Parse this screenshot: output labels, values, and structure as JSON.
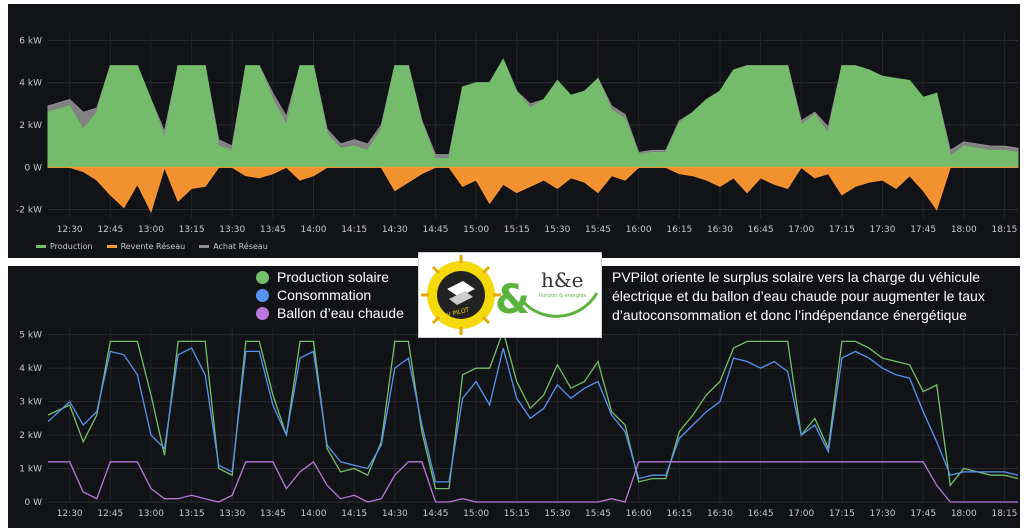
{
  "chart_data": [
    {
      "type": "area",
      "ylim": [
        -2.4,
        6.4
      ],
      "y_ticks": [
        "-2 kW",
        "0 W",
        "2 kW",
        "4 kW",
        "6 kW"
      ],
      "y_tick_values": [
        -2,
        0,
        2,
        4,
        6
      ],
      "x_ticks": [
        "12:30",
        "12:45",
        "13:00",
        "13:15",
        "13:30",
        "13:45",
        "14:00",
        "14:15",
        "14:30",
        "14:45",
        "15:00",
        "15:15",
        "15:30",
        "15:45",
        "16:00",
        "16:15",
        "16:30",
        "16:45",
        "17:00",
        "17:15",
        "17:30",
        "17:45",
        "18:00",
        "18:15"
      ],
      "x_range": [
        "12:22",
        "18:20"
      ],
      "grid": true,
      "legend": "bottom-left",
      "series": [
        {
          "name": "Production",
          "color": "#73bf69",
          "x": [
            "12:22",
            "12:30",
            "12:35",
            "12:40",
            "12:45",
            "12:50",
            "12:55",
            "13:00",
            "13:05",
            "13:10",
            "13:15",
            "13:20",
            "13:25",
            "13:30",
            "13:35",
            "13:40",
            "13:45",
            "13:50",
            "13:55",
            "14:00",
            "14:05",
            "14:10",
            "14:15",
            "14:20",
            "14:25",
            "14:30",
            "14:35",
            "14:40",
            "14:45",
            "14:50",
            "14:55",
            "15:00",
            "15:05",
            "15:10",
            "15:15",
            "15:20",
            "15:25",
            "15:30",
            "15:35",
            "15:40",
            "15:45",
            "15:50",
            "15:55",
            "16:00",
            "16:05",
            "16:10",
            "16:15",
            "16:20",
            "16:25",
            "16:30",
            "16:35",
            "16:40",
            "16:45",
            "16:50",
            "16:55",
            "17:00",
            "17:05",
            "17:10",
            "17:15",
            "17:20",
            "17:25",
            "17:30",
            "17:35",
            "17:40",
            "17:45",
            "17:50",
            "17:55",
            "18:00",
            "18:05",
            "18:10",
            "18:15",
            "18:20"
          ],
          "values": [
            2.6,
            2.9,
            1.8,
            2.6,
            4.8,
            4.8,
            4.8,
            3.2,
            1.4,
            4.8,
            4.8,
            4.8,
            1.0,
            0.8,
            4.8,
            4.8,
            3.2,
            2.0,
            4.8,
            4.8,
            1.6,
            0.9,
            1.0,
            0.8,
            1.8,
            4.8,
            4.8,
            2.1,
            0.4,
            0.4,
            3.8,
            4.0,
            4.0,
            5.1,
            3.6,
            2.8,
            3.2,
            4.1,
            3.4,
            3.6,
            4.2,
            2.7,
            2.3,
            0.6,
            0.7,
            0.7,
            2.1,
            2.6,
            3.2,
            3.6,
            4.6,
            4.8,
            4.8,
            4.8,
            4.8,
            2.0,
            2.5,
            1.6,
            4.8,
            4.8,
            4.6,
            4.3,
            4.2,
            4.1,
            3.3,
            3.5,
            0.5,
            1.0,
            0.9,
            0.8,
            0.8,
            0.7
          ]
        },
        {
          "name": "Revente Réseau",
          "color": "#ff9830",
          "x": [
            "12:22",
            "12:30",
            "12:35",
            "12:40",
            "12:45",
            "12:50",
            "12:55",
            "13:00",
            "13:05",
            "13:10",
            "13:15",
            "13:20",
            "13:25",
            "13:30",
            "13:35",
            "13:40",
            "13:45",
            "13:50",
            "13:55",
            "14:00",
            "14:05",
            "14:10",
            "14:15",
            "14:20",
            "14:25",
            "14:30",
            "14:35",
            "14:40",
            "14:45",
            "14:50",
            "14:55",
            "15:00",
            "15:05",
            "15:10",
            "15:15",
            "15:20",
            "15:25",
            "15:30",
            "15:35",
            "15:40",
            "15:45",
            "15:50",
            "15:55",
            "16:00",
            "16:05",
            "16:10",
            "16:15",
            "16:20",
            "16:25",
            "16:30",
            "16:35",
            "16:40",
            "16:45",
            "16:50",
            "16:55",
            "17:00",
            "17:05",
            "17:10",
            "17:15",
            "17:20",
            "17:25",
            "17:30",
            "17:35",
            "17:40",
            "17:45",
            "17:50",
            "17:55",
            "18:00",
            "18:05",
            "18:10",
            "18:15",
            "18:20"
          ],
          "values": [
            0,
            0,
            -0.2,
            -0.6,
            -1.3,
            -1.9,
            -0.8,
            -2.1,
            0,
            -1.6,
            -1.0,
            -0.9,
            0,
            0,
            -0.4,
            -0.5,
            -0.3,
            0,
            -0.6,
            -0.4,
            0,
            0,
            0,
            0,
            0,
            -1.1,
            -0.7,
            -0.3,
            0,
            0,
            -0.9,
            -0.6,
            -1.7,
            -0.8,
            -1.2,
            -0.9,
            -0.6,
            -1.0,
            -0.5,
            -0.7,
            -1.2,
            -0.4,
            -0.6,
            0,
            0,
            0,
            -0.3,
            -0.4,
            -0.6,
            -0.9,
            -0.5,
            -1.2,
            -0.5,
            -0.8,
            -1.0,
            0,
            -0.5,
            -0.3,
            -1.3,
            -0.9,
            -0.7,
            -0.6,
            -1.0,
            -0.4,
            -1.1,
            -2.0,
            0,
            0,
            0,
            0,
            0,
            0
          ]
        },
        {
          "name": "Achat Réseau",
          "color": "#8e8e8e",
          "x": [
            "12:22",
            "12:30",
            "12:35",
            "12:40",
            "12:45",
            "12:50",
            "12:55",
            "13:00",
            "13:05",
            "13:10",
            "13:15",
            "13:20",
            "13:25",
            "13:30",
            "13:35",
            "13:40",
            "13:45",
            "13:50",
            "13:55",
            "14:00",
            "14:05",
            "14:10",
            "14:15",
            "14:20",
            "14:25",
            "14:30",
            "14:35",
            "14:40",
            "14:45",
            "14:50",
            "14:55",
            "15:00",
            "15:05",
            "15:10",
            "15:15",
            "15:20",
            "15:25",
            "15:30",
            "15:35",
            "15:40",
            "15:45",
            "15:50",
            "15:55",
            "16:00",
            "16:05",
            "16:10",
            "16:15",
            "16:20",
            "16:25",
            "16:30",
            "16:35",
            "16:40",
            "16:45",
            "16:50",
            "16:55",
            "17:00",
            "17:05",
            "17:10",
            "17:15",
            "17:20",
            "17:25",
            "17:30",
            "17:35",
            "17:40",
            "17:45",
            "17:50",
            "17:55",
            "18:00",
            "18:05",
            "18:10",
            "18:15",
            "18:20"
          ],
          "values": [
            0.3,
            0.3,
            0.8,
            0.2,
            0,
            0,
            0,
            0,
            0.3,
            0,
            0,
            0,
            0.3,
            0.2,
            0,
            0,
            0.3,
            0.4,
            0,
            0,
            0.2,
            0.2,
            0.3,
            0.3,
            0.2,
            0,
            0,
            0.1,
            0.2,
            0.2,
            0,
            0,
            0,
            0,
            0,
            0.2,
            0,
            0,
            0,
            0,
            0,
            0.2,
            0.2,
            0.1,
            0.1,
            0.1,
            0.1,
            0,
            0,
            0,
            0,
            0,
            0,
            0,
            0,
            0.2,
            0.1,
            0.3,
            0,
            0,
            0,
            0,
            0,
            0,
            0,
            0,
            0.3,
            0.2,
            0.2,
            0.2,
            0.2,
            0.2
          ]
        }
      ]
    },
    {
      "type": "line",
      "ylim": [
        0,
        5.2
      ],
      "y_ticks": [
        "0 W",
        "1 kW",
        "2 kW",
        "3 kW",
        "4 kW",
        "5 kW"
      ],
      "y_tick_values": [
        0,
        1,
        2,
        3,
        4,
        5
      ],
      "x_ticks": [
        "12:30",
        "12:45",
        "13:00",
        "13:15",
        "13:30",
        "13:45",
        "14:00",
        "14:15",
        "14:30",
        "14:45",
        "15:00",
        "15:15",
        "15:30",
        "15:45",
        "16:00",
        "16:15",
        "16:30",
        "16:45",
        "17:00",
        "17:15",
        "17:30",
        "17:45",
        "18:00",
        "18:15"
      ],
      "x_range": [
        "12:22",
        "18:20"
      ],
      "grid": true,
      "legend": "top-left",
      "series": [
        {
          "name": "Production solaire",
          "color": "#73bf69",
          "x": [
            "12:22",
            "12:30",
            "12:35",
            "12:40",
            "12:45",
            "12:50",
            "12:55",
            "13:00",
            "13:05",
            "13:10",
            "13:15",
            "13:20",
            "13:25",
            "13:30",
            "13:35",
            "13:40",
            "13:45",
            "13:50",
            "13:55",
            "14:00",
            "14:05",
            "14:10",
            "14:15",
            "14:20",
            "14:25",
            "14:30",
            "14:35",
            "14:40",
            "14:45",
            "14:50",
            "14:55",
            "15:00",
            "15:05",
            "15:10",
            "15:15",
            "15:20",
            "15:25",
            "15:30",
            "15:35",
            "15:40",
            "15:45",
            "15:50",
            "15:55",
            "16:00",
            "16:05",
            "16:10",
            "16:15",
            "16:20",
            "16:25",
            "16:30",
            "16:35",
            "16:40",
            "16:45",
            "16:50",
            "16:55",
            "17:00",
            "17:05",
            "17:10",
            "17:15",
            "17:20",
            "17:25",
            "17:30",
            "17:35",
            "17:40",
            "17:45",
            "17:50",
            "17:55",
            "18:00",
            "18:05",
            "18:10",
            "18:15",
            "18:20"
          ],
          "values": [
            2.6,
            2.9,
            1.8,
            2.6,
            4.8,
            4.8,
            4.8,
            3.2,
            1.4,
            4.8,
            4.8,
            4.8,
            1.0,
            0.8,
            4.8,
            4.8,
            3.2,
            2.0,
            4.8,
            4.8,
            1.6,
            0.9,
            1.0,
            0.8,
            1.8,
            4.8,
            4.8,
            2.1,
            0.4,
            0.4,
            3.8,
            4.0,
            4.0,
            5.1,
            3.6,
            2.8,
            3.2,
            4.1,
            3.4,
            3.6,
            4.2,
            2.7,
            2.3,
            0.6,
            0.7,
            0.7,
            2.1,
            2.6,
            3.2,
            3.6,
            4.6,
            4.8,
            4.8,
            4.8,
            4.8,
            2.0,
            2.5,
            1.6,
            4.8,
            4.8,
            4.6,
            4.3,
            4.2,
            4.1,
            3.3,
            3.5,
            0.5,
            1.0,
            0.9,
            0.8,
            0.8,
            0.7
          ]
        },
        {
          "name": "Consommation",
          "color": "#5794f2",
          "x": [
            "12:22",
            "12:30",
            "12:35",
            "12:40",
            "12:45",
            "12:50",
            "12:55",
            "13:00",
            "13:05",
            "13:10",
            "13:15",
            "13:20",
            "13:25",
            "13:30",
            "13:35",
            "13:40",
            "13:45",
            "13:50",
            "13:55",
            "14:00",
            "14:05",
            "14:10",
            "14:15",
            "14:20",
            "14:25",
            "14:30",
            "14:35",
            "14:40",
            "14:45",
            "14:50",
            "14:55",
            "15:00",
            "15:05",
            "15:10",
            "15:15",
            "15:20",
            "15:25",
            "15:30",
            "15:35",
            "15:40",
            "15:45",
            "15:50",
            "15:55",
            "16:00",
            "16:05",
            "16:10",
            "16:15",
            "16:20",
            "16:25",
            "16:30",
            "16:35",
            "16:40",
            "16:45",
            "16:50",
            "16:55",
            "17:00",
            "17:05",
            "17:10",
            "17:15",
            "17:20",
            "17:25",
            "17:30",
            "17:35",
            "17:40",
            "17:45",
            "17:50",
            "17:55",
            "18:00",
            "18:05",
            "18:10",
            "18:15",
            "18:20"
          ],
          "values": [
            2.4,
            3.0,
            2.3,
            2.7,
            4.5,
            4.4,
            3.8,
            2.0,
            1.6,
            4.4,
            4.6,
            3.8,
            1.1,
            0.9,
            4.5,
            4.5,
            2.9,
            2.0,
            4.3,
            4.5,
            1.7,
            1.2,
            1.1,
            1.0,
            1.7,
            4.0,
            4.3,
            2.3,
            0.6,
            0.6,
            3.1,
            3.6,
            2.9,
            4.6,
            3.1,
            2.5,
            2.8,
            3.5,
            3.1,
            3.4,
            3.6,
            2.6,
            2.1,
            0.7,
            0.8,
            0.8,
            1.9,
            2.3,
            2.7,
            3.0,
            4.3,
            4.2,
            4.0,
            4.2,
            3.9,
            2.0,
            2.3,
            1.5,
            4.3,
            4.5,
            4.3,
            4.0,
            3.8,
            3.7,
            2.7,
            1.8,
            0.8,
            0.9,
            0.9,
            0.9,
            0.9,
            0.8
          ]
        },
        {
          "name": "Ballon d’eau chaude",
          "color": "#b877d9",
          "x": [
            "12:22",
            "12:30",
            "12:35",
            "12:40",
            "12:45",
            "12:50",
            "12:55",
            "13:00",
            "13:05",
            "13:10",
            "13:15",
            "13:20",
            "13:25",
            "13:30",
            "13:35",
            "13:40",
            "13:45",
            "13:50",
            "13:55",
            "14:00",
            "14:05",
            "14:10",
            "14:15",
            "14:20",
            "14:25",
            "14:30",
            "14:35",
            "14:40",
            "14:45",
            "14:50",
            "14:55",
            "15:00",
            "15:05",
            "15:10",
            "15:15",
            "15:20",
            "15:25",
            "15:30",
            "15:35",
            "15:40",
            "15:45",
            "15:50",
            "15:55",
            "16:00",
            "16:05",
            "16:10",
            "16:15",
            "16:20",
            "16:25",
            "16:30",
            "16:35",
            "16:40",
            "16:45",
            "16:50",
            "16:55",
            "17:00",
            "17:05",
            "17:10",
            "17:15",
            "17:20",
            "17:25",
            "17:30",
            "17:35",
            "17:40",
            "17:45",
            "17:50",
            "17:55",
            "18:00",
            "18:05",
            "18:10",
            "18:15",
            "18:20"
          ],
          "values": [
            1.2,
            1.2,
            0.3,
            0.1,
            1.2,
            1.2,
            1.2,
            0.4,
            0.1,
            0.1,
            0.2,
            0.1,
            0,
            0.2,
            1.2,
            1.2,
            1.2,
            0.4,
            0.9,
            1.2,
            0.5,
            0.1,
            0.2,
            0.0,
            0.1,
            0.8,
            1.2,
            1.2,
            0,
            0,
            0.1,
            0,
            0,
            0,
            0,
            0,
            0,
            0,
            0,
            0,
            0,
            0.1,
            0,
            1.2,
            1.2,
            1.2,
            1.2,
            1.2,
            1.2,
            1.2,
            1.2,
            1.2,
            1.2,
            1.2,
            1.2,
            1.2,
            1.2,
            1.2,
            1.2,
            1.2,
            1.2,
            1.2,
            1.2,
            1.2,
            1.2,
            0.5,
            0.0,
            0.0,
            0.0,
            0.0,
            0.0,
            0.0
          ]
        }
      ]
    }
  ],
  "top_legend": [
    {
      "label": "Production",
      "color": "#73bf69"
    },
    {
      "label": "Revente Réseau",
      "color": "#ff9830"
    },
    {
      "label": "Achat Réseau",
      "color": "#8e8e8e"
    }
  ],
  "bottom_legend": [
    {
      "label": "Production solaire",
      "color": "#73bf69"
    },
    {
      "label": "Consommation",
      "color": "#5794f2"
    },
    {
      "label": "Ballon d’eau chaude",
      "color": "#b877d9"
    }
  ],
  "logo": {
    "brand_left": "PV PILOT",
    "brand_right": "h&e",
    "brand_right_sub": "horizon & énergies"
  },
  "caption": "PVPilot oriente le surplus solaire vers la charge du véhicule électrique et du ballon d’eau chaude pour augmenter le taux d’autoconsommation et donc l’indépendance énergétique"
}
